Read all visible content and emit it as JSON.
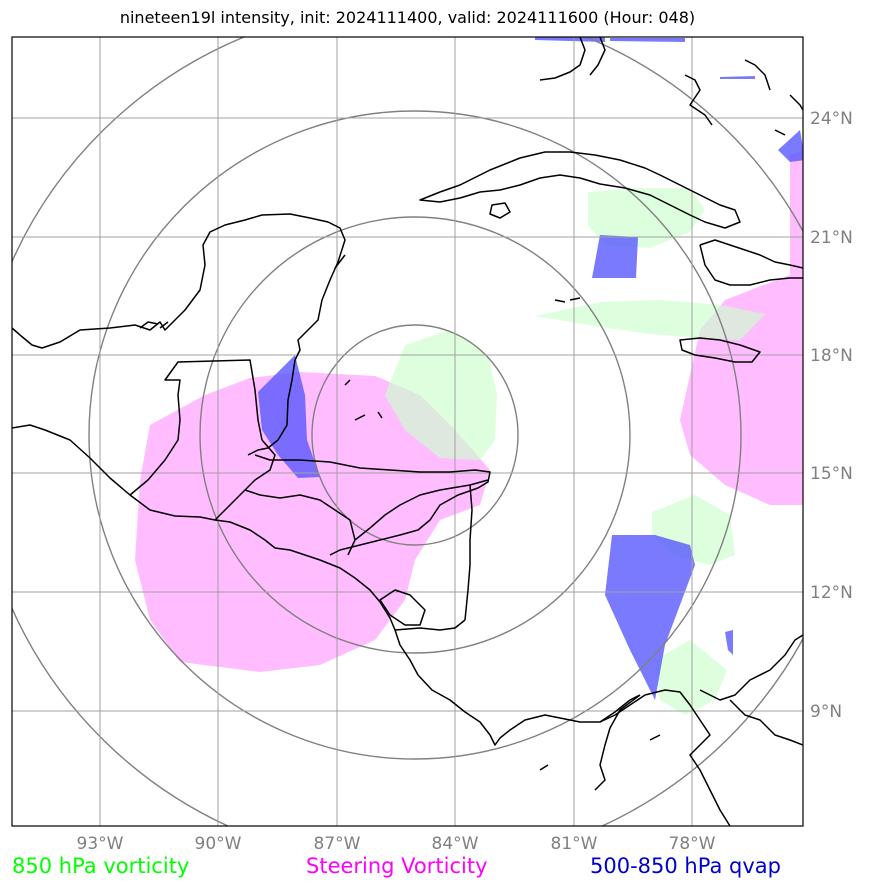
{
  "title": "nineteen19l intensity, init: 2024111400, valid: 2024111600 (Hour: 048)",
  "latitude_labels": [
    "24°N",
    "21°N",
    "18°N",
    "15°N",
    "12°N",
    "9°N"
  ],
  "longitude_labels": [
    "93°W",
    "90°W",
    "87°W",
    "84°W",
    "81°W",
    "78°W"
  ],
  "legend": [
    {
      "label": "850 hPa vorticity",
      "color": "#00ff00"
    },
    {
      "label": "Steering Vorticity",
      "color": "#ff00ff"
    },
    {
      "label": "500-850 hPa qvap",
      "color": "#0000cc"
    }
  ],
  "field_colors": {
    "vorticity_850": "#ccffcc",
    "steering_vorticity": "#ffaaff",
    "qvap_500_850": "#6666ff"
  }
}
